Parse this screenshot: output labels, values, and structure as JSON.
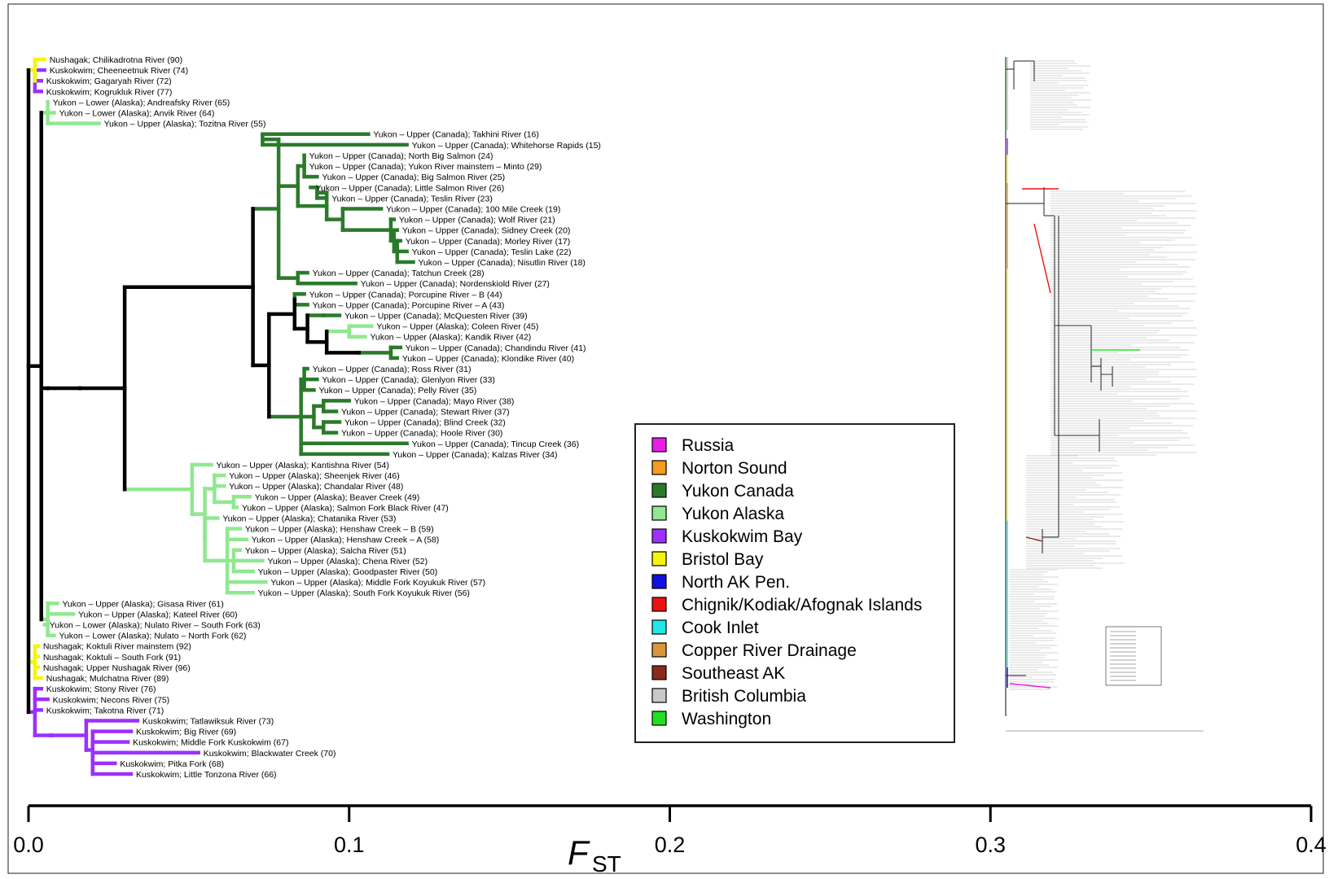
{
  "axis": {
    "label_main": "F",
    "label_sub": "ST",
    "ticks": [
      {
        "value": 0.0,
        "label": "0.0"
      },
      {
        "value": 0.1,
        "label": "0.1"
      },
      {
        "value": 0.2,
        "label": "0.2"
      },
      {
        "value": 0.3,
        "label": "0.3"
      },
      {
        "value": 0.4,
        "label": "0.4"
      }
    ],
    "range": [
      0,
      0.4
    ]
  },
  "legend": {
    "items": [
      {
        "label": "Russia",
        "color": "#e81ee8"
      },
      {
        "label": "Norton Sound",
        "color": "#f39c1f"
      },
      {
        "label": "Yukon Canada",
        "color": "#2b7a2b"
      },
      {
        "label": "Yukon Alaska",
        "color": "#90e890"
      },
      {
        "label": "Kuskokwim Bay",
        "color": "#9b30ff"
      },
      {
        "label": "Bristol Bay",
        "color": "#f5f50a"
      },
      {
        "label": "North AK Pen.",
        "color": "#1010e0"
      },
      {
        "label": "Chignik/Kodiak/Afognak Islands",
        "color": "#ee1111"
      },
      {
        "label": "Cook Inlet",
        "color": "#22e6e6"
      },
      {
        "label": "Copper River Drainage",
        "color": "#d9963a"
      },
      {
        "label": "Southeast AK",
        "color": "#8b2a1a"
      },
      {
        "label": "British Columbia",
        "color": "#c8c8c8"
      },
      {
        "label": "Washington",
        "color": "#20e020"
      }
    ]
  },
  "branch_colors": {
    "bristol": "#f5f50a",
    "kusko": "#9b30ff",
    "yukon_ak": "#90e890",
    "yukon_ca": "#2b7a2b",
    "internal": "#000000"
  },
  "tree": {
    "leaves": [
      {
        "label": "Nushagak; Chilikadrotna River (90)",
        "fst": 0.005,
        "color": "bristol"
      },
      {
        "label": "Kuskokwim; Cheeneetnuk River (74)",
        "fst": 0.005,
        "color": "kusko"
      },
      {
        "label": "Kuskokwim; Gagaryah River (72)",
        "fst": 0.004,
        "color": "kusko"
      },
      {
        "label": "Kuskokwim; Kogrukluk River (77)",
        "fst": 0.004,
        "color": "kusko"
      },
      {
        "label": "Yukon – Lower (Alaska); Andreafsky River (65)",
        "fst": 0.006,
        "color": "yukon_ak"
      },
      {
        "label": "Yukon – Lower (Alaska); Anvik River (64)",
        "fst": 0.008,
        "color": "yukon_ak"
      },
      {
        "label": "Yukon – Upper (Alaska); Tozitna River (55)",
        "fst": 0.022,
        "color": "yukon_ak"
      },
      {
        "label": "Yukon – Upper (Canada); Takhini River (16)",
        "fst": 0.106,
        "color": "yukon_ca"
      },
      {
        "label": "Yukon – Upper (Canada); Whitehorse Rapids (15)",
        "fst": 0.118,
        "color": "yukon_ca"
      },
      {
        "label": "Yukon – Upper (Canada); North Big Salmon (24)",
        "fst": 0.086,
        "color": "yukon_ca"
      },
      {
        "label": "Yukon – Upper (Canada); Yukon River mainstem – Minto (29)",
        "fst": 0.086,
        "color": "yukon_ca"
      },
      {
        "label": "Yukon – Upper (Canada); Big Salmon River (25)",
        "fst": 0.09,
        "color": "yukon_ca"
      },
      {
        "label": "Yukon – Upper (Canada); Little Salmon River (26)",
        "fst": 0.088,
        "color": "yukon_ca"
      },
      {
        "label": "Yukon – Upper (Canada); Teslin River (23)",
        "fst": 0.093,
        "color": "yukon_ca"
      },
      {
        "label": "Yukon – Upper (Canada); 100 Mile Creek (19)",
        "fst": 0.11,
        "color": "yukon_ca"
      },
      {
        "label": "Yukon – Upper (Canada); Wolf River (21)",
        "fst": 0.114,
        "color": "yukon_ca"
      },
      {
        "label": "Yukon – Upper (Canada); Sidney Creek (20)",
        "fst": 0.115,
        "color": "yukon_ca"
      },
      {
        "label": "Yukon – Upper (Canada); Morley River (17)",
        "fst": 0.116,
        "color": "yukon_ca"
      },
      {
        "label": "Yukon – Upper (Canada); Teslin Lake (22)",
        "fst": 0.118,
        "color": "yukon_ca"
      },
      {
        "label": "Yukon – Upper (Canada); Nisutlin River (18)",
        "fst": 0.12,
        "color": "yukon_ca"
      },
      {
        "label": "Yukon – Upper (Canada); Tatchun Creek (28)",
        "fst": 0.087,
        "color": "yukon_ca"
      },
      {
        "label": "Yukon – Upper (Canada); Nordenskiold River (27)",
        "fst": 0.102,
        "color": "yukon_ca"
      },
      {
        "label": "Yukon – Upper (Canada); Porcupine River – B (44)",
        "fst": 0.086,
        "color": "yukon_ca"
      },
      {
        "label": "Yukon – Upper (Canada); Porcupine River – A (43)",
        "fst": 0.087,
        "color": "yukon_ca"
      },
      {
        "label": "Yukon – Upper (Canada); McQuesten River (39)",
        "fst": 0.097,
        "color": "yukon_ca"
      },
      {
        "label": "Yukon – Upper (Alaska); Coleen River (45)",
        "fst": 0.107,
        "color": "yukon_ak"
      },
      {
        "label": "Yukon – Upper (Alaska); Kandik River (42)",
        "fst": 0.105,
        "color": "yukon_ak"
      },
      {
        "label": "Yukon – Upper (Canada); Chandindu River (41)",
        "fst": 0.116,
        "color": "yukon_ca"
      },
      {
        "label": "Yukon – Upper (Canada); Klondike River (40)",
        "fst": 0.115,
        "color": "yukon_ca"
      },
      {
        "label": "Yukon – Upper (Canada); Ross River (31)",
        "fst": 0.087,
        "color": "yukon_ca"
      },
      {
        "label": "Yukon – Upper (Canada); Glenlyon River (33)",
        "fst": 0.09,
        "color": "yukon_ca"
      },
      {
        "label": "Yukon – Upper (Canada); Pelly River (35)",
        "fst": 0.089,
        "color": "yukon_ca"
      },
      {
        "label": "Yukon – Upper (Canada); Mayo River (38)",
        "fst": 0.1,
        "color": "yukon_ca"
      },
      {
        "label": "Yukon – Upper (Canada); Stewart River (37)",
        "fst": 0.096,
        "color": "yukon_ca"
      },
      {
        "label": "Yukon – Upper (Canada); Blind Creek (32)",
        "fst": 0.097,
        "color": "yukon_ca"
      },
      {
        "label": "Yukon – Upper (Canada); Hoole River (30)",
        "fst": 0.096,
        "color": "yukon_ca"
      },
      {
        "label": "Yukon – Upper (Canada); Tincup Creek (36)",
        "fst": 0.118,
        "color": "yukon_ca"
      },
      {
        "label": "Yukon – Upper (Canada); Kalzas River (34)",
        "fst": 0.112,
        "color": "yukon_ca"
      },
      {
        "label": "Yukon – Upper (Alaska); Kantishna River (54)",
        "fst": 0.057,
        "color": "yukon_ak"
      },
      {
        "label": "Yukon – Upper (Alaska); Sheenjek River (46)",
        "fst": 0.061,
        "color": "yukon_ak"
      },
      {
        "label": "Yukon – Upper (Alaska); Chandalar River (48)",
        "fst": 0.061,
        "color": "yukon_ak"
      },
      {
        "label": "Yukon – Upper (Alaska); Beaver Creek (49)",
        "fst": 0.069,
        "color": "yukon_ak"
      },
      {
        "label": "Yukon – Upper (Alaska); Salmon Fork Black River (47)",
        "fst": 0.065,
        "color": "yukon_ak"
      },
      {
        "label": "Yukon – Upper (Alaska); Chatanika River (53)",
        "fst": 0.059,
        "color": "yukon_ak"
      },
      {
        "label": "Yukon – Upper (Alaska); Henshaw Creek – B (59)",
        "fst": 0.066,
        "color": "yukon_ak"
      },
      {
        "label": "Yukon – Upper (Alaska); Henshaw Creek – A (58)",
        "fst": 0.068,
        "color": "yukon_ak"
      },
      {
        "label": "Yukon – Upper (Alaska); Salcha River (51)",
        "fst": 0.066,
        "color": "yukon_ak"
      },
      {
        "label": "Yukon – Upper (Alaska); Chena River (52)",
        "fst": 0.073,
        "color": "yukon_ak"
      },
      {
        "label": "Yukon – Upper (Alaska); Goodpaster River (50)",
        "fst": 0.07,
        "color": "yukon_ak"
      },
      {
        "label": "Yukon – Upper (Alaska); Middle Fork Koyukuk River (57)",
        "fst": 0.074,
        "color": "yukon_ak"
      },
      {
        "label": "Yukon – Upper (Alaska); South Fork Koyukuk River (56)",
        "fst": 0.07,
        "color": "yukon_ak"
      },
      {
        "label": "Yukon – Upper (Alaska); Gisasa River (61)",
        "fst": 0.009,
        "color": "yukon_ak"
      },
      {
        "label": "Yukon – Upper (Alaska); Kateel River (60)",
        "fst": 0.014,
        "color": "yukon_ak"
      },
      {
        "label": "Yukon – Lower (Alaska); Nulato River – South Fork (63)",
        "fst": 0.005,
        "color": "yukon_ak"
      },
      {
        "label": "Yukon – Lower (Alaska); Nulato – North Fork (62)",
        "fst": 0.008,
        "color": "yukon_ak"
      },
      {
        "label": "Nushagak; Koktuli River mainstem (92)",
        "fst": 0.003,
        "color": "bristol"
      },
      {
        "label": "Nushagak; Koktuli – South Fork (91)",
        "fst": 0.003,
        "color": "bristol"
      },
      {
        "label": "Nushagak; Upper Nushagak River (96)",
        "fst": 0.003,
        "color": "bristol"
      },
      {
        "label": "Nushagak; Mulchatna River (89)",
        "fst": 0.004,
        "color": "bristol"
      },
      {
        "label": "Kuskokwim; Stony River (76)",
        "fst": 0.004,
        "color": "kusko"
      },
      {
        "label": "Kuskokwim; Necons River (75)",
        "fst": 0.006,
        "color": "kusko"
      },
      {
        "label": "Kuskokwim; Takotna River (71)",
        "fst": 0.004,
        "color": "kusko"
      },
      {
        "label": "Kuskokwim; Tatlawiksuk River (73)",
        "fst": 0.034,
        "color": "kusko"
      },
      {
        "label": "Kuskokwim; Big River (69)",
        "fst": 0.032,
        "color": "kusko"
      },
      {
        "label": "Kuskokwim; Middle Fork Kuskokwim (67)",
        "fst": 0.031,
        "color": "kusko"
      },
      {
        "label": "Kuskokwim; Blackwater Creek (70)",
        "fst": 0.053,
        "color": "kusko"
      },
      {
        "label": "Kuskokwim; Pitka Fork (68)",
        "fst": 0.027,
        "color": "kusko"
      },
      {
        "label": "Kuskokwim; Little Tonzona River (66)",
        "fst": 0.032,
        "color": "kusko"
      }
    ]
  }
}
